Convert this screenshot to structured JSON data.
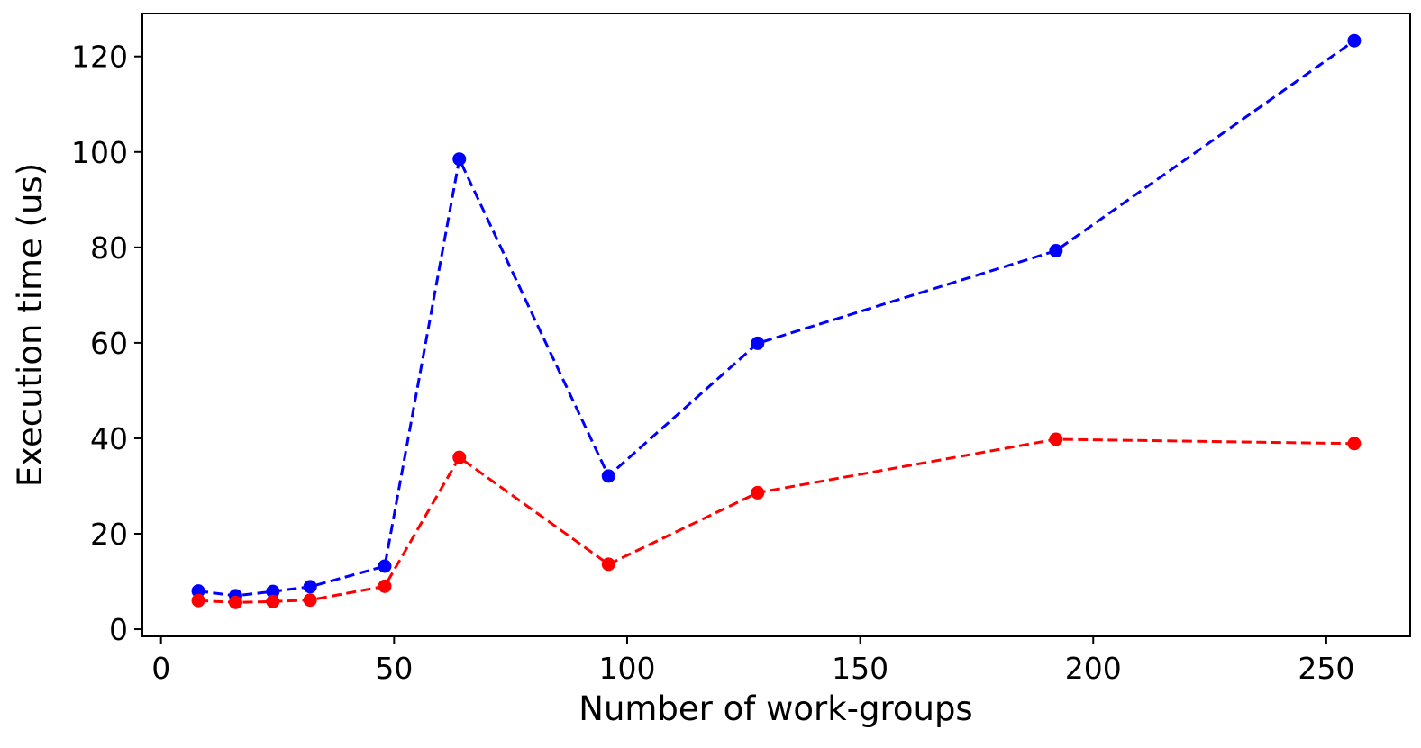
{
  "chart_data": {
    "type": "line",
    "title": "",
    "xlabel": "Number of work-groups",
    "ylabel": "Execution time (us)",
    "xlim": [
      -4,
      268
    ],
    "ylim": [
      -1.5,
      129
    ],
    "xticks": [
      0,
      50,
      100,
      150,
      200,
      250
    ],
    "yticks": [
      0,
      20,
      40,
      60,
      80,
      100,
      120
    ],
    "xtick_labels": [
      "0",
      "50",
      "100",
      "150",
      "200",
      "250"
    ],
    "ytick_labels": [
      "0",
      "20",
      "40",
      "60",
      "80",
      "100",
      "120"
    ],
    "grid": false,
    "x": [
      8,
      16,
      24,
      32,
      48,
      64,
      96,
      128,
      192,
      256
    ],
    "series": [
      {
        "color": "#0000ff",
        "line_style": "dashed",
        "marker": "circle",
        "values": [
          8.0,
          7.0,
          7.9,
          8.9,
          13.2,
          98.5,
          32.1,
          59.9,
          79.3,
          123.3
        ]
      },
      {
        "color": "#ff0000",
        "line_style": "dashed",
        "marker": "circle",
        "values": [
          6.0,
          5.6,
          5.8,
          6.1,
          9.0,
          36.0,
          13.6,
          28.6,
          39.8,
          38.9
        ]
      }
    ]
  }
}
